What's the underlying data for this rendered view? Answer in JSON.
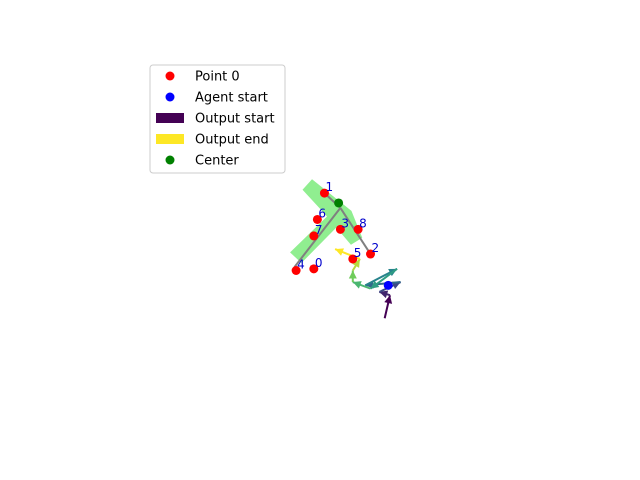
{
  "chart_data": {
    "type": "scatter",
    "title": "",
    "xlabel": "",
    "ylabel": "",
    "axes_visible": false,
    "grid": false,
    "xlim": [
      -7,
      7
    ],
    "ylim": [
      -5.6,
      5.6
    ],
    "colors": {
      "point": "#ff0000",
      "agent_start": "#0000ff",
      "center": "#008000",
      "region": "#90ee90",
      "skeleton": "#808080",
      "label": "#0000cc",
      "output_start": "#440154",
      "output_end": "#fde725"
    },
    "points": [
      {
        "label": "0",
        "x": -0.4,
        "y": -0.8
      },
      {
        "label": "1",
        "x": -0.1,
        "y": 1.5
      },
      {
        "label": "2",
        "x": 1.2,
        "y": -0.35
      },
      {
        "label": "3",
        "x": 0.35,
        "y": 0.4
      },
      {
        "label": "4",
        "x": -0.9,
        "y": -0.85
      },
      {
        "label": "5",
        "x": 0.7,
        "y": -0.5
      },
      {
        "label": "6",
        "x": -0.3,
        "y": 0.7
      },
      {
        "label": "7",
        "x": -0.4,
        "y": 0.2
      },
      {
        "label": "8",
        "x": 0.85,
        "y": 0.4
      }
    ],
    "center": {
      "x": 0.3,
      "y": 1.2
    },
    "agent_start": {
      "x": 1.7,
      "y": -1.3
    },
    "region_polygons": [
      [
        [
          -0.45,
          1.9
        ],
        [
          0.65,
          0.95
        ],
        [
          0.95,
          0.15
        ],
        [
          0.65,
          -0.05
        ],
        [
          -0.1,
          0.9
        ],
        [
          -0.7,
          1.6
        ]
      ],
      [
        [
          -1.05,
          -0.3
        ],
        [
          -0.75,
          -0.6
        ],
        [
          0.35,
          0.6
        ],
        [
          0.05,
          0.85
        ]
      ]
    ],
    "skeleton": [
      {
        "from": [
          -0.1,
          1.5
        ],
        "to": [
          0.35,
          1.05
        ]
      },
      {
        "from": [
          0.35,
          1.05
        ],
        "to": [
          1.2,
          -0.35
        ]
      },
      {
        "from": [
          0.35,
          1.05
        ],
        "to": [
          -0.95,
          -0.75
        ]
      }
    ],
    "trajectory": [
      {
        "x": 1.6,
        "y": -2.3
      },
      {
        "x": 1.75,
        "y": -1.6
      },
      {
        "x": 1.45,
        "y": -1.5
      },
      {
        "x": 2.05,
        "y": -1.2
      },
      {
        "x": 1.05,
        "y": -1.3
      },
      {
        "x": 1.95,
        "y": -0.8
      },
      {
        "x": 1.2,
        "y": -1.4
      },
      {
        "x": 0.7,
        "y": -1.2
      },
      {
        "x": 0.7,
        "y": -0.85
      },
      {
        "x": 0.9,
        "y": -0.5
      },
      {
        "x": 0.2,
        "y": -0.2
      }
    ],
    "legend": {
      "position": "upper-left",
      "entries": [
        {
          "label": "Point 0",
          "marker": "dot",
          "color": "#ff0000"
        },
        {
          "label": "Agent start",
          "marker": "dot",
          "color": "#0000ff"
        },
        {
          "label": "Output start",
          "marker": "rect",
          "color": "#440154"
        },
        {
          "label": "Output end",
          "marker": "rect",
          "color": "#fde725"
        },
        {
          "label": "Center",
          "marker": "dot",
          "color": "#008000"
        }
      ]
    }
  }
}
